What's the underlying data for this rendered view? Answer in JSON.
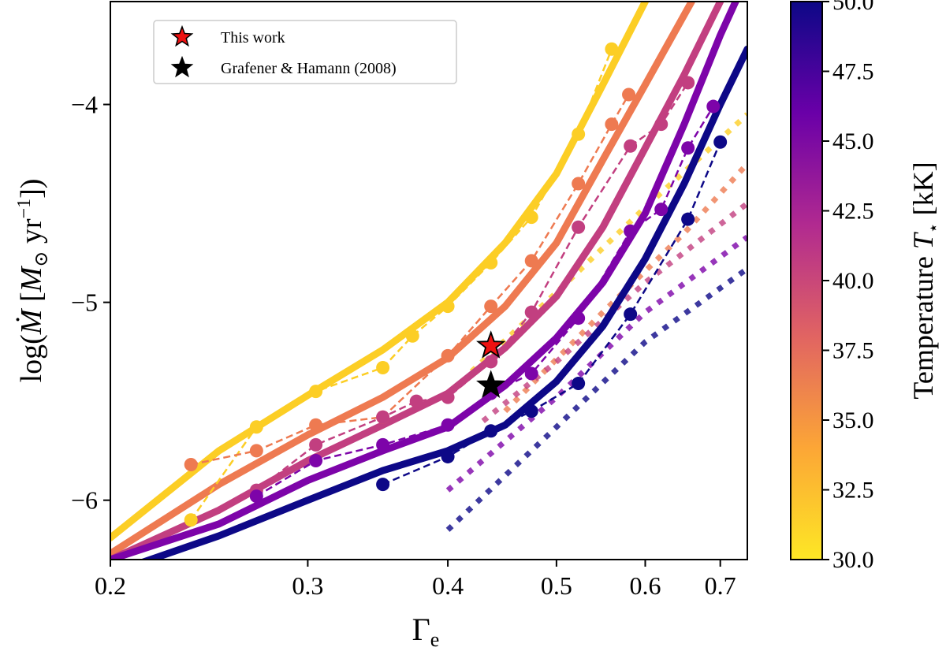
{
  "chart_data": {
    "type": "line",
    "xlabel": "Γ_e",
    "ylabel": "log(Ṁ [M_⊙ yr^-1])",
    "xscale": "log",
    "xlim": [
      0.2,
      0.74
    ],
    "ylim": [
      -6.3,
      -3.48
    ],
    "xticks": [
      0.2,
      0.3,
      0.4,
      0.5,
      0.6,
      0.7
    ],
    "xtick_labels": [
      "0.2",
      "0.3",
      "0.4",
      "0.5",
      "0.6",
      "0.7"
    ],
    "yticks": [
      -6,
      -5,
      -4
    ],
    "ytick_labels": [
      "−6",
      "−5",
      "−4"
    ],
    "colorbar": {
      "label": "Temperature T⋆ [kK]",
      "range": [
        30.0,
        50.0
      ],
      "ticks": [
        30.0,
        32.5,
        35.0,
        37.5,
        40.0,
        42.5,
        45.0,
        47.5,
        50.0
      ],
      "tick_labels": [
        "30.0",
        "32.5",
        "35.0",
        "37.5",
        "40.0",
        "42.5",
        "45.0",
        "47.5",
        "50.0"
      ],
      "colormap": "plasma_r",
      "stops": [
        "#fde725",
        "#fca636",
        "#e16462",
        "#b12a90",
        "#6a00a8",
        "#0d0887"
      ]
    },
    "legend": {
      "position": "top-left",
      "entries": [
        {
          "label": "This work",
          "marker": "star",
          "color": "#ee1111"
        },
        {
          "label": "Grafener & Hamann (2008)",
          "marker": "star",
          "color": "#000000"
        }
      ]
    },
    "series": [
      {
        "name": "30 kK",
        "temperature": 30,
        "color": "#fcce25",
        "fit": [
          [
            0.2,
            -6.19
          ],
          [
            0.25,
            -5.75
          ],
          [
            0.3,
            -5.47
          ],
          [
            0.35,
            -5.24
          ],
          [
            0.4,
            -5.0
          ],
          [
            0.45,
            -4.7
          ],
          [
            0.5,
            -4.35
          ],
          [
            0.55,
            -3.9
          ],
          [
            0.6,
            -3.48
          ]
        ],
        "points": [
          [
            0.236,
            -6.1
          ],
          [
            0.27,
            -5.63
          ],
          [
            0.305,
            -5.45
          ],
          [
            0.35,
            -5.33
          ],
          [
            0.372,
            -5.17
          ],
          [
            0.4,
            -5.02
          ],
          [
            0.437,
            -4.8
          ],
          [
            0.475,
            -4.57
          ],
          [
            0.523,
            -4.15
          ],
          [
            0.56,
            -3.72
          ]
        ],
        "asymptote": [
          [
            0.42,
            -5.35
          ],
          [
            0.5,
            -4.95
          ],
          [
            0.6,
            -4.52
          ],
          [
            0.74,
            -4.05
          ]
        ]
      },
      {
        "name": "35 kK",
        "temperature": 35,
        "color": "#ee7a51",
        "fit": [
          [
            0.2,
            -6.27
          ],
          [
            0.25,
            -5.92
          ],
          [
            0.3,
            -5.67
          ],
          [
            0.35,
            -5.48
          ],
          [
            0.4,
            -5.28
          ],
          [
            0.45,
            -5.02
          ],
          [
            0.5,
            -4.7
          ],
          [
            0.55,
            -4.28
          ],
          [
            0.6,
            -3.9
          ],
          [
            0.66,
            -3.48
          ]
        ],
        "points": [
          [
            0.236,
            -5.82
          ],
          [
            0.27,
            -5.75
          ],
          [
            0.305,
            -5.62
          ],
          [
            0.35,
            -5.58
          ],
          [
            0.4,
            -5.27
          ],
          [
            0.437,
            -5.02
          ],
          [
            0.475,
            -4.79
          ],
          [
            0.523,
            -4.4
          ],
          [
            0.56,
            -4.1
          ],
          [
            0.58,
            -3.95
          ]
        ],
        "asymptote": [
          [
            0.45,
            -5.55
          ],
          [
            0.55,
            -5.05
          ],
          [
            0.65,
            -4.65
          ],
          [
            0.74,
            -4.3
          ]
        ]
      },
      {
        "name": "40 kK",
        "temperature": 40,
        "color": "#c23f80",
        "fit": [
          [
            0.2,
            -6.3
          ],
          [
            0.25,
            -6.05
          ],
          [
            0.3,
            -5.8
          ],
          [
            0.35,
            -5.62
          ],
          [
            0.4,
            -5.46
          ],
          [
            0.45,
            -5.23
          ],
          [
            0.5,
            -4.97
          ],
          [
            0.55,
            -4.62
          ],
          [
            0.6,
            -4.22
          ],
          [
            0.65,
            -3.85
          ],
          [
            0.7,
            -3.48
          ]
        ],
        "points": [
          [
            0.27,
            -5.95
          ],
          [
            0.305,
            -5.72
          ],
          [
            0.35,
            -5.58
          ],
          [
            0.375,
            -5.5
          ],
          [
            0.4,
            -5.48
          ],
          [
            0.437,
            -5.3
          ],
          [
            0.475,
            -5.05
          ],
          [
            0.523,
            -4.62
          ],
          [
            0.582,
            -4.21
          ],
          [
            0.62,
            -4.1
          ],
          [
            0.655,
            -3.89
          ]
        ],
        "asymptote": [
          [
            0.43,
            -5.6
          ],
          [
            0.5,
            -5.3
          ],
          [
            0.6,
            -4.9
          ],
          [
            0.74,
            -4.5
          ]
        ]
      },
      {
        "name": "45 kK",
        "temperature": 45,
        "color": "#7d04a9",
        "fit": [
          [
            0.2,
            -6.3
          ],
          [
            0.25,
            -6.12
          ],
          [
            0.3,
            -5.9
          ],
          [
            0.35,
            -5.75
          ],
          [
            0.4,
            -5.63
          ],
          [
            0.45,
            -5.42
          ],
          [
            0.5,
            -5.18
          ],
          [
            0.55,
            -4.9
          ],
          [
            0.6,
            -4.55
          ],
          [
            0.65,
            -4.1
          ],
          [
            0.7,
            -3.65
          ],
          [
            0.74,
            -3.35
          ]
        ],
        "points": [
          [
            0.27,
            -5.98
          ],
          [
            0.305,
            -5.8
          ],
          [
            0.35,
            -5.72
          ],
          [
            0.4,
            -5.62
          ],
          [
            0.437,
            -5.46
          ],
          [
            0.475,
            -5.36
          ],
          [
            0.523,
            -5.08
          ],
          [
            0.582,
            -4.64
          ],
          [
            0.62,
            -4.53
          ],
          [
            0.655,
            -4.22
          ],
          [
            0.69,
            -4.01
          ]
        ],
        "asymptote": [
          [
            0.4,
            -5.95
          ],
          [
            0.5,
            -5.48
          ],
          [
            0.6,
            -5.05
          ],
          [
            0.74,
            -4.67
          ]
        ]
      },
      {
        "name": "50 kK",
        "temperature": 50,
        "color": "#0d0887",
        "fit": [
          [
            0.2,
            -6.37
          ],
          [
            0.25,
            -6.18
          ],
          [
            0.3,
            -6.0
          ],
          [
            0.35,
            -5.85
          ],
          [
            0.4,
            -5.75
          ],
          [
            0.45,
            -5.62
          ],
          [
            0.5,
            -5.4
          ],
          [
            0.55,
            -5.12
          ],
          [
            0.6,
            -4.78
          ],
          [
            0.65,
            -4.4
          ],
          [
            0.7,
            -4.0
          ],
          [
            0.74,
            -3.72
          ]
        ],
        "points": [
          [
            0.35,
            -5.92
          ],
          [
            0.4,
            -5.78
          ],
          [
            0.437,
            -5.65
          ],
          [
            0.475,
            -5.55
          ],
          [
            0.523,
            -5.41
          ],
          [
            0.582,
            -5.06
          ],
          [
            0.655,
            -4.58
          ],
          [
            0.7,
            -4.19
          ]
        ],
        "asymptote": [
          [
            0.4,
            -6.15
          ],
          [
            0.5,
            -5.63
          ],
          [
            0.6,
            -5.2
          ],
          [
            0.74,
            -4.83
          ]
        ]
      }
    ],
    "markers": [
      {
        "name": "This work",
        "x": 0.437,
        "y": -5.22,
        "color": "#ee1111"
      },
      {
        "name": "Grafener & Hamann (2008)",
        "x": 0.437,
        "y": -5.42,
        "color": "#000000"
      }
    ]
  }
}
